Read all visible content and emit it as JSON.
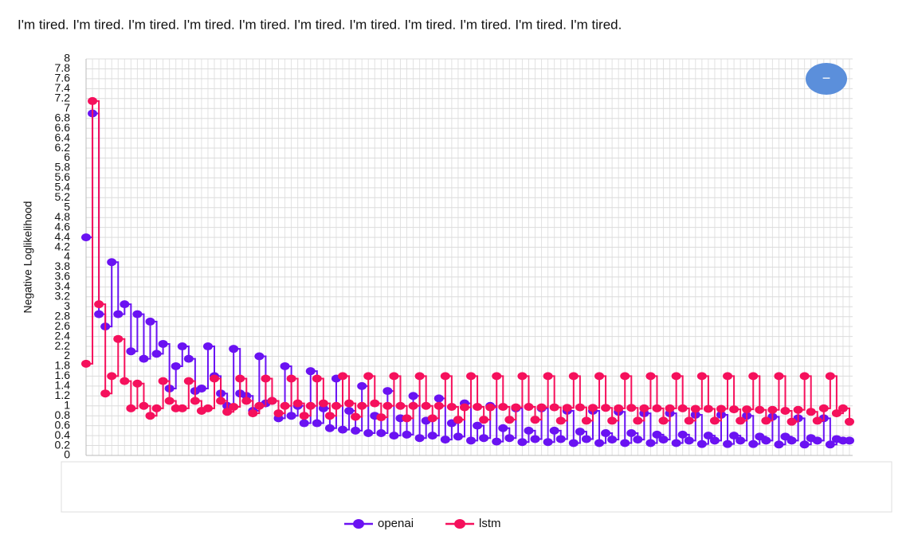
{
  "header": {
    "text": "I'm tired. I'm tired. I'm tired. I'm tired. I'm tired. I'm tired. I'm tired. I'm tired. I'm tired. I'm tired. I'm tired."
  },
  "button": {
    "label": "−"
  },
  "chart_data": {
    "type": "step",
    "y_label": "Negative Loglikelihood",
    "ylim": [
      0,
      8
    ],
    "yticks": [
      0,
      0.2,
      0.4,
      0.6,
      0.8,
      1,
      1.2,
      1.4,
      1.6,
      1.8,
      2,
      2.2,
      2.4,
      2.6,
      2.8,
      3,
      3.2,
      3.4,
      3.6,
      3.8,
      4,
      4.2,
      4.4,
      4.6,
      4.8,
      5,
      5.2,
      5.4,
      5.6,
      5.8,
      6,
      6.2,
      6.4,
      6.6,
      6.8,
      7,
      7.2,
      7.4,
      7.6,
      7.8,
      8
    ],
    "grid": true,
    "legend": "bottom",
    "series": [
      {
        "name": "openai",
        "color": "#6a12f2",
        "values": [
          4.4,
          6.9,
          2.85,
          2.6,
          3.9,
          2.85,
          3.05,
          2.1,
          2.85,
          1.95,
          2.7,
          2.05,
          2.25,
          1.35,
          1.8,
          2.2,
          1.95,
          1.3,
          1.35,
          2.2,
          1.6,
          1.25,
          1.0,
          2.15,
          1.25,
          1.2,
          0.9,
          2.0,
          1.05,
          1.1,
          0.75,
          1.8,
          0.8,
          1.0,
          0.65,
          1.7,
          0.65,
          0.95,
          0.55,
          1.55,
          0.52,
          0.9,
          0.5,
          1.4,
          0.45,
          0.8,
          0.45,
          1.3,
          0.4,
          0.75,
          0.42,
          1.2,
          0.35,
          0.7,
          0.4,
          1.15,
          0.32,
          0.65,
          0.38,
          1.05,
          0.3,
          0.6,
          0.35,
          1.0,
          0.28,
          0.55,
          0.35,
          0.95,
          0.27,
          0.5,
          0.33,
          0.95,
          0.27,
          0.5,
          0.33,
          0.9,
          0.25,
          0.48,
          0.33,
          0.9,
          0.25,
          0.45,
          0.32,
          0.88,
          0.25,
          0.45,
          0.32,
          0.85,
          0.25,
          0.42,
          0.32,
          0.85,
          0.25,
          0.42,
          0.3,
          0.82,
          0.23,
          0.4,
          0.3,
          0.82,
          0.23,
          0.4,
          0.3,
          0.8,
          0.23,
          0.38,
          0.3,
          0.78,
          0.22,
          0.38,
          0.3,
          0.75,
          0.22,
          0.35,
          0.3,
          0.75,
          0.22,
          0.33,
          0.3,
          0.3
        ]
      },
      {
        "name": "lstm",
        "color": "#f5105c",
        "values": [
          1.85,
          7.15,
          3.05,
          1.25,
          1.6,
          2.35,
          1.5,
          0.95,
          1.45,
          1.0,
          0.8,
          0.95,
          1.5,
          1.1,
          0.95,
          0.95,
          1.5,
          1.1,
          0.9,
          0.95,
          1.55,
          1.1,
          0.88,
          0.98,
          1.55,
          1.1,
          0.85,
          1.0,
          1.55,
          1.1,
          0.85,
          1.0,
          1.55,
          1.05,
          0.8,
          1.0,
          1.55,
          1.05,
          0.8,
          1.0,
          1.6,
          1.05,
          0.78,
          1.0,
          1.6,
          1.05,
          0.77,
          1.0,
          1.6,
          1.0,
          0.75,
          1.0,
          1.6,
          1.0,
          0.75,
          1.0,
          1.6,
          0.98,
          0.72,
          0.97,
          1.6,
          0.98,
          0.72,
          0.97,
          1.6,
          0.98,
          0.72,
          0.97,
          1.6,
          0.98,
          0.72,
          0.97,
          1.6,
          0.97,
          0.7,
          0.96,
          1.6,
          0.97,
          0.7,
          0.96,
          1.6,
          0.96,
          0.7,
          0.95,
          1.6,
          0.96,
          0.7,
          0.95,
          1.6,
          0.95,
          0.7,
          0.95,
          1.6,
          0.95,
          0.7,
          0.94,
          1.6,
          0.94,
          0.7,
          0.94,
          1.6,
          0.93,
          0.7,
          0.93,
          1.6,
          0.92,
          0.7,
          0.92,
          1.6,
          0.9,
          0.68,
          0.92,
          1.6,
          0.88,
          0.7,
          0.95,
          1.6,
          0.85,
          0.95,
          0.68
        ]
      }
    ]
  }
}
